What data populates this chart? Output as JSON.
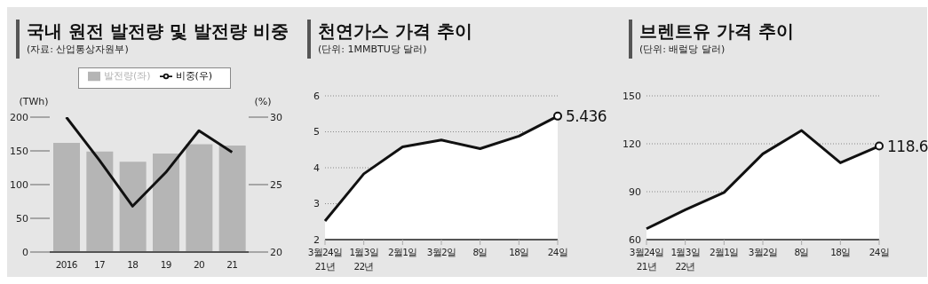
{
  "chart_data": [
    {
      "type": "bar",
      "title": "국내 원전 발전량 및 발전량 비중",
      "subtitle": "(자료: 산업통상자원부)",
      "ylabel": "(TWh)",
      "y2label": "(%)",
      "categories": [
        "2016",
        "17",
        "18",
        "19",
        "20",
        "21"
      ],
      "series": [
        {
          "name": "발전량(좌)",
          "color": "#b5b5b5",
          "values": [
            162,
            149,
            134,
            146,
            160,
            158
          ]
        },
        {
          "name": "비중(우)",
          "type": "line",
          "color": "#111111",
          "axis": "y2",
          "values": [
            30.0,
            26.8,
            23.4,
            25.9,
            29.0,
            27.4
          ]
        }
      ],
      "ylim": [
        0,
        200
      ],
      "yticks": [
        0,
        50,
        100,
        150,
        200
      ],
      "y2lim": [
        20,
        30
      ],
      "y2ticks": [
        20,
        25,
        30
      ],
      "legend": "top"
    },
    {
      "type": "area",
      "title": "천연가스 가격 추이",
      "subtitle": "(단위: 1MMBTU당 달러)",
      "categories": [
        "3월24일\n21년",
        "1월3일\n22년",
        "2월1일",
        "3월2일",
        "8일",
        "18일",
        "24일"
      ],
      "values": [
        2.52,
        3.83,
        4.58,
        4.77,
        4.53,
        4.88,
        5.436
      ],
      "color": "#111111",
      "value_labels": [
        null,
        null,
        null,
        null,
        null,
        null,
        "5.436"
      ],
      "ylim": [
        2,
        6
      ],
      "yticks": [
        2,
        3,
        4,
        5,
        6
      ],
      "grid": "y"
    },
    {
      "type": "area",
      "title": "브렌트유 가격 추이",
      "subtitle": "(단위: 배럴당 달러)",
      "categories": [
        "3월24일\n21년",
        "1월3일\n22년",
        "2월1일",
        "3월2일",
        "8일",
        "18일",
        "24일"
      ],
      "values": [
        66.8,
        78.7,
        89.5,
        113.7,
        128.3,
        108.1,
        118.6
      ],
      "color": "#111111",
      "value_labels": [
        null,
        null,
        null,
        null,
        null,
        null,
        "118.6"
      ],
      "ylim": [
        60,
        150
      ],
      "yticks": [
        60,
        90,
        120,
        150
      ],
      "grid": "y"
    }
  ]
}
